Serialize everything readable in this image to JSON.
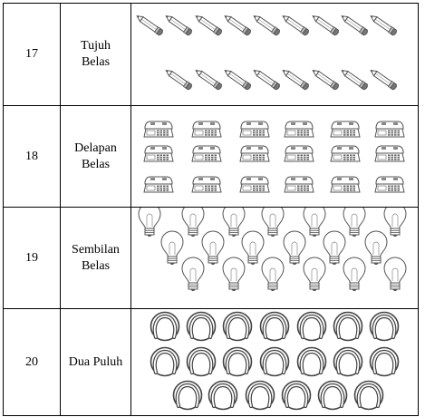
{
  "rows": [
    {
      "number": "17",
      "word_line1": "Tujuh",
      "word_line2": "Belas",
      "object_icon": "pencil-icon",
      "count": 17
    },
    {
      "number": "18",
      "word_line1": "Delapan",
      "word_line2": "Belas",
      "object_icon": "telephone-icon",
      "count": 18
    },
    {
      "number": "19",
      "word_line1": "Sembilan",
      "word_line2": "Belas",
      "object_icon": "light-bulb-icon",
      "count": 19
    },
    {
      "number": "20",
      "word_line1": "Dua Puluh",
      "word_line2": "",
      "object_icon": "tennis-ball-icon",
      "count": 20
    }
  ]
}
